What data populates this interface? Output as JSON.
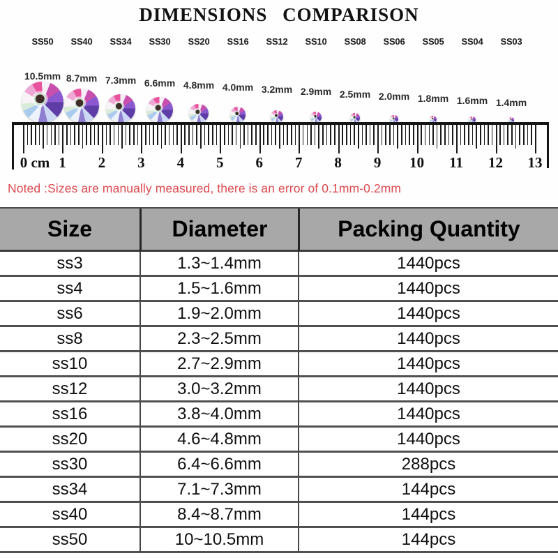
{
  "title": "DIMENSIONS COMPARISON",
  "note": "Noted :Sizes are manually measured, there is an error of 0.1mm-0.2mm",
  "colors": {
    "note_red": "#dc4a50",
    "table_header_bg": "#a8a8a8",
    "table_border": "#4a4a4a",
    "ruler_black": "#151515",
    "stone_center": "#3e2d26",
    "stone_magenta": "#c94fae",
    "stone_purple": "#5e3da6",
    "stone_blue": "#aacbee"
  },
  "sizes": [
    {
      "ss": "SS50",
      "diameter_label": "10.5mm",
      "mm": 10.5
    },
    {
      "ss": "SS40",
      "diameter_label": "8.7mm",
      "mm": 8.7
    },
    {
      "ss": "SS34",
      "diameter_label": "7.3mm",
      "mm": 7.3
    },
    {
      "ss": "SS30",
      "diameter_label": "6.6mm",
      "mm": 6.6
    },
    {
      "ss": "SS20",
      "diameter_label": "4.8mm",
      "mm": 4.8
    },
    {
      "ss": "SS16",
      "diameter_label": "4.0mm",
      "mm": 4.0
    },
    {
      "ss": "SS12",
      "diameter_label": "3.2mm",
      "mm": 3.2
    },
    {
      "ss": "SS10",
      "diameter_label": "2.9mm",
      "mm": 2.9
    },
    {
      "ss": "SS08",
      "diameter_label": "2.5mm",
      "mm": 2.5
    },
    {
      "ss": "SS06",
      "diameter_label": "2.0mm",
      "mm": 2.0
    },
    {
      "ss": "SS05",
      "diameter_label": "1.8mm",
      "mm": 1.8
    },
    {
      "ss": "SS04",
      "diameter_label": "1.6mm",
      "mm": 1.6
    },
    {
      "ss": "SS03",
      "diameter_label": "1.4mm",
      "mm": 1.4
    }
  ],
  "ruler": {
    "numbers": [
      "0 cm",
      "1",
      "2",
      "3",
      "4",
      "5",
      "6",
      "7",
      "8",
      "9",
      "10",
      "11",
      "12",
      "13"
    ]
  },
  "table": {
    "headers": [
      "Size",
      "Diameter",
      "Packing Quantity"
    ],
    "rows": [
      {
        "size": "ss3",
        "diameter": "1.3~1.4mm",
        "quantity": "1440pcs"
      },
      {
        "size": "ss4",
        "diameter": "1.5~1.6mm",
        "quantity": "1440pcs"
      },
      {
        "size": "ss6",
        "diameter": "1.9~2.0mm",
        "quantity": "1440pcs"
      },
      {
        "size": "ss8",
        "diameter": "2.3~2.5mm",
        "quantity": "1440pcs"
      },
      {
        "size": "ss10",
        "diameter": "2.7~2.9mm",
        "quantity": "1440pcs"
      },
      {
        "size": "ss12",
        "diameter": "3.0~3.2mm",
        "quantity": "1440pcs"
      },
      {
        "size": "ss16",
        "diameter": "3.8~4.0mm",
        "quantity": "1440pcs"
      },
      {
        "size": "ss20",
        "diameter": "4.6~4.8mm",
        "quantity": "1440pcs"
      },
      {
        "size": "ss30",
        "diameter": "6.4~6.6mm",
        "quantity": "288pcs"
      },
      {
        "size": "ss34",
        "diameter": "7.1~7.3mm",
        "quantity": "144pcs"
      },
      {
        "size": "ss40",
        "diameter": "8.4~8.7mm",
        "quantity": "144pcs"
      },
      {
        "size": "ss50",
        "diameter": "10~10.5mm",
        "quantity": "144pcs"
      }
    ]
  }
}
